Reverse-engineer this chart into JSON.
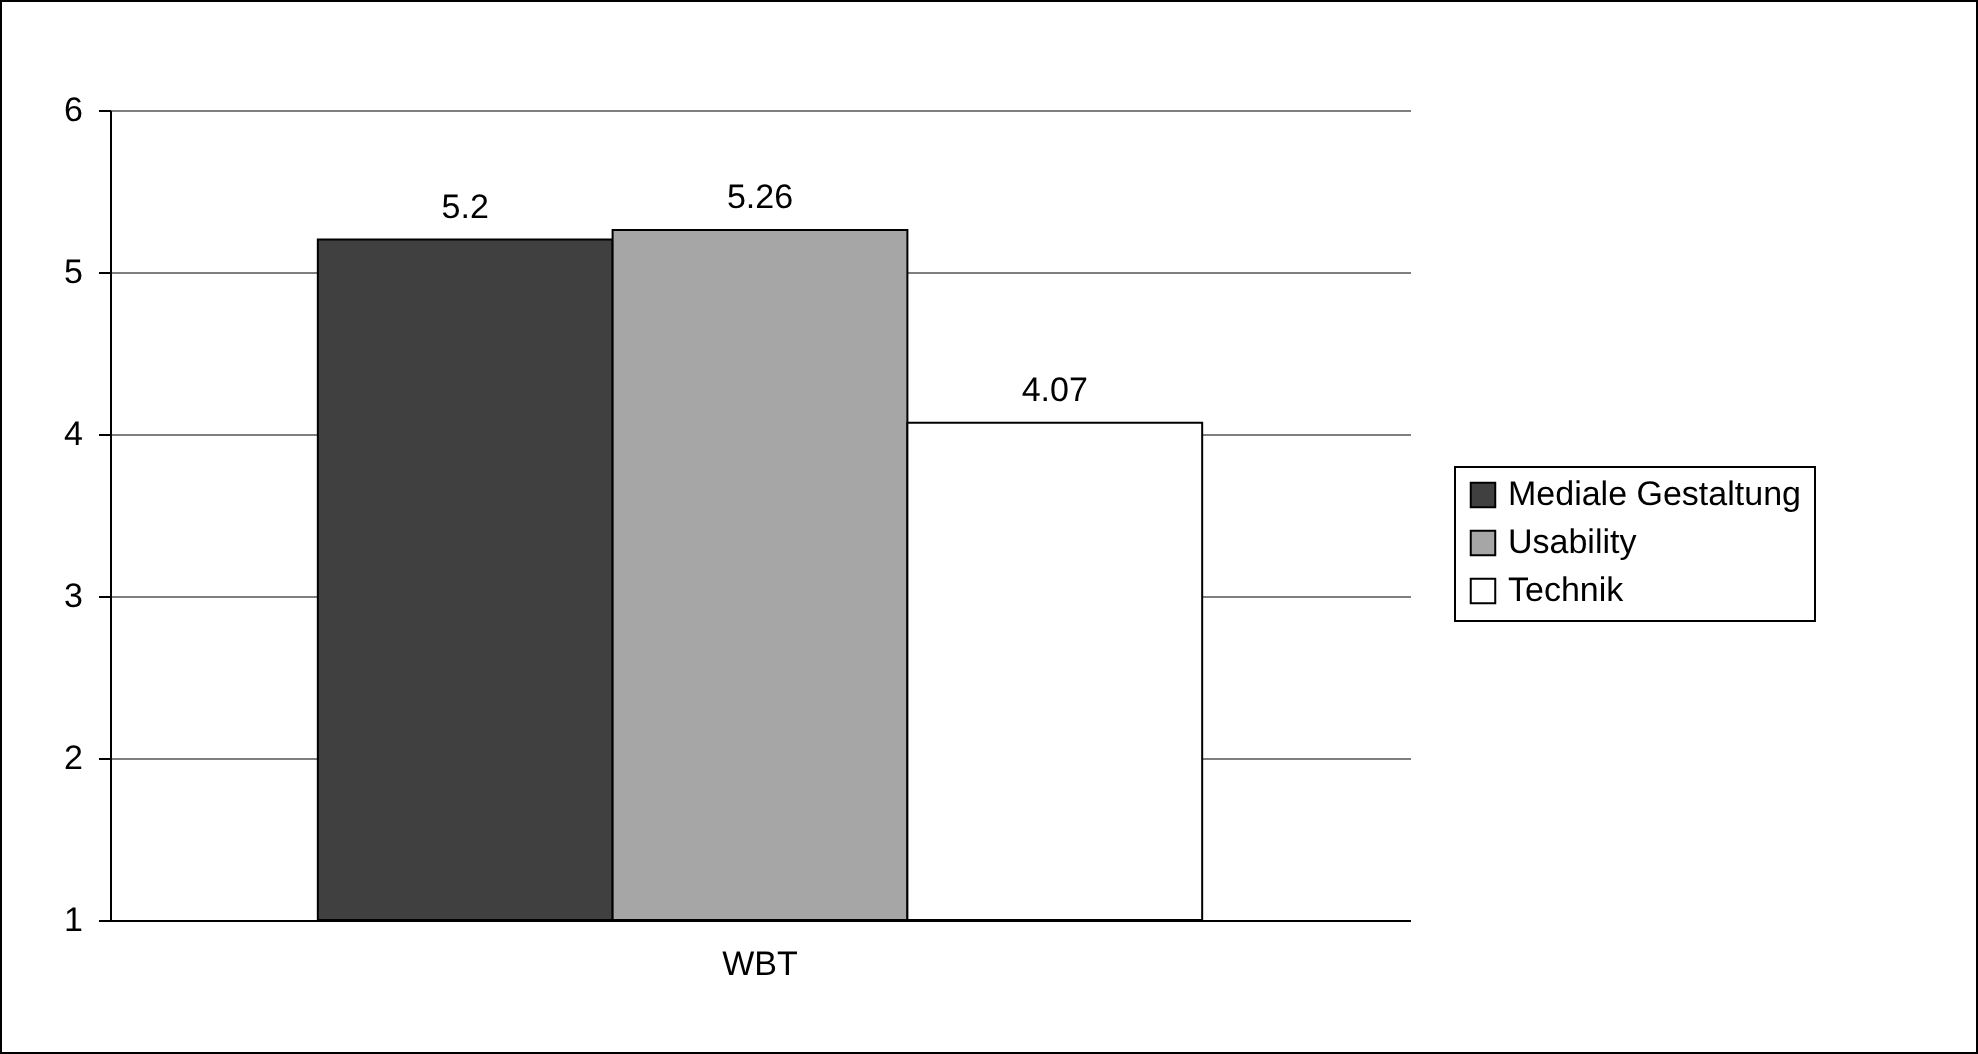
{
  "chart_data": {
    "type": "bar",
    "categories": [
      "WBT"
    ],
    "series": [
      {
        "name": "Mediale Gestaltung",
        "color": "#404040",
        "values": [
          5.2
        ]
      },
      {
        "name": "Usability",
        "color": "#a6a6a6",
        "values": [
          5.26
        ]
      },
      {
        "name": "Technik",
        "color": "#ffffff",
        "values": [
          4.07
        ]
      }
    ],
    "ylim": [
      1,
      6
    ],
    "yticks": [
      1,
      2,
      3,
      4,
      5,
      6
    ],
    "grid": "y",
    "legend": "right",
    "data_labels": true
  }
}
